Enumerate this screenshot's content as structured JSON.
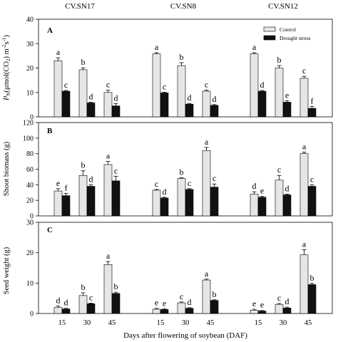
{
  "cultivars": [
    "CV.SN17",
    "CV.SN8",
    "CV.SN12"
  ],
  "xlabel": "Days after flowering of soybean (DAF)",
  "categories": [
    "15",
    "30",
    "45"
  ],
  "legend": {
    "control": "Control",
    "drought": "Drought stress",
    "placement": "top-right"
  },
  "colors": {
    "control": "#e6e6e6",
    "drought": "#111111",
    "axis": "#000000"
  },
  "chart_data": [
    {
      "type": "bar",
      "panel_label": "A",
      "ylabel_main": "P",
      "ylabel_sub": "N",
      "ylabel_rest": "(μmol(CO",
      "ylabel_sub2": "2",
      "ylabel_tail": ") m",
      "ylabel_sup1": "-2",
      "ylabel_mid": "s",
      "ylabel_sup2": "-1",
      "ylabel_end": ")",
      "ylim": [
        0,
        40
      ],
      "yticks": [
        "0",
        "10",
        "20",
        "30",
        "40"
      ],
      "series": [
        {
          "name": "Control",
          "groups": [
            {
              "values": [
                23,
                19.3,
                10
              ],
              "errors": [
                1.2,
                0.8,
                0.9
              ],
              "letters": [
                "a",
                "b",
                "c"
              ]
            },
            {
              "values": [
                25.8,
                21,
                10.5
              ],
              "errors": [
                0.5,
                1.2,
                0.5
              ],
              "letters": [
                "a",
                "b",
                "c"
              ]
            },
            {
              "values": [
                25.8,
                20,
                15.8
              ],
              "errors": [
                0.5,
                1,
                0.8
              ],
              "letters": [
                "a",
                "b",
                "c"
              ]
            }
          ]
        },
        {
          "name": "Drought stress",
          "groups": [
            {
              "values": [
                10.5,
                5.7,
                4.5
              ],
              "errors": [
                0.3,
                0.3,
                0.9
              ],
              "letters": [
                "c",
                "d",
                "d"
              ]
            },
            {
              "values": [
                9.8,
                5.2,
                4.7
              ],
              "errors": [
                0.3,
                0.3,
                0.3
              ],
              "letters": [
                "c",
                "d",
                "d"
              ]
            },
            {
              "values": [
                10.5,
                6,
                3.5
              ],
              "errors": [
                0.3,
                0.6,
                0.8
              ],
              "letters": [
                "d",
                "e",
                "f"
              ]
            }
          ]
        }
      ]
    },
    {
      "type": "bar",
      "panel_label": "B",
      "ylabel": "Shoot biomass (g)",
      "ylim": [
        0,
        120
      ],
      "yticks": [
        "0",
        "20",
        "40",
        "60",
        "80",
        "100",
        "120"
      ],
      "series": [
        {
          "name": "Control",
          "groups": [
            {
              "values": [
                32,
                52,
                66
              ],
              "errors": [
                3,
                6,
                4
              ],
              "letters": [
                "e",
                "b",
                "a"
              ]
            },
            {
              "values": [
                33,
                48,
                84
              ],
              "errors": [
                1,
                1,
                4
              ],
              "letters": [
                "c",
                "b",
                "a"
              ]
            },
            {
              "values": [
                28,
                46,
                80
              ],
              "errors": [
                3,
                6,
                2
              ],
              "letters": [
                "d",
                "c",
                "a"
              ]
            }
          ]
        },
        {
          "name": "Drought stress",
          "groups": [
            {
              "values": [
                26,
                38,
                45
              ],
              "errors": [
                3,
                2,
                6
              ],
              "letters": [
                "f",
                "d",
                "c"
              ]
            },
            {
              "values": [
                23,
                34,
                37
              ],
              "errors": [
                1,
                1,
                4
              ],
              "letters": [
                "d",
                "c",
                "c"
              ]
            },
            {
              "values": [
                24,
                27,
                38
              ],
              "errors": [
                1,
                1,
                2
              ],
              "letters": [
                "e",
                "d",
                "c"
              ]
            }
          ]
        }
      ]
    },
    {
      "type": "bar",
      "panel_label": "C",
      "ylabel": "Seed weight (g)",
      "ylim": [
        0,
        30
      ],
      "yticks": [
        "0",
        "10",
        "20",
        "30"
      ],
      "series": [
        {
          "name": "Control",
          "groups": [
            {
              "values": [
                2,
                5.9,
                16.1
              ],
              "errors": [
                0.5,
                0.9,
                1
              ],
              "letters": [
                "d",
                "b",
                "a"
              ]
            },
            {
              "values": [
                1.4,
                3.5,
                11
              ],
              "errors": [
                0.3,
                0.3,
                0.3
              ],
              "letters": [
                "e",
                "c",
                "a"
              ]
            },
            {
              "values": [
                1.1,
                3,
                19.3
              ],
              "errors": [
                0.3,
                0.3,
                1.7
              ],
              "letters": [
                "e",
                "c",
                "a"
              ]
            }
          ]
        },
        {
          "name": "Drought stress",
          "groups": [
            {
              "values": [
                1.5,
                3.2,
                6.6
              ],
              "errors": [
                0.2,
                0.2,
                0.4
              ],
              "letters": [
                "d",
                "c",
                "b"
              ]
            },
            {
              "values": [
                1.3,
                1.7,
                4.3
              ],
              "errors": [
                0.2,
                0.2,
                0.2
              ],
              "letters": [
                "e",
                "d",
                "b"
              ]
            },
            {
              "values": [
                0.8,
                1.8,
                9.5
              ],
              "errors": [
                0.2,
                0.3,
                0.4
              ],
              "letters": [
                "e",
                "d",
                "b"
              ]
            }
          ]
        }
      ]
    }
  ]
}
